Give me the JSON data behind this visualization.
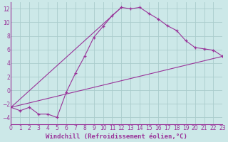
{
  "xlabel": "Windchill (Refroidissement éolien,°C)",
  "background_color": "#cce8e8",
  "line_color": "#993399",
  "grid_color": "#aacccc",
  "xlim": [
    0,
    23
  ],
  "ylim": [
    -5,
    13
  ],
  "xticks": [
    0,
    1,
    2,
    3,
    4,
    5,
    6,
    7,
    8,
    9,
    10,
    11,
    12,
    13,
    14,
    15,
    16,
    17,
    18,
    19,
    20,
    21,
    22,
    23
  ],
  "yticks": [
    -4,
    -2,
    0,
    2,
    4,
    6,
    8,
    10,
    12
  ],
  "curve1_x": [
    0,
    1,
    2,
    3,
    4,
    5,
    6,
    7,
    8,
    9,
    10,
    11,
    12,
    13,
    14,
    15,
    16,
    17,
    18,
    19,
    20,
    21,
    22,
    23
  ],
  "curve1_y": [
    -2.5,
    -3.0,
    -2.5,
    -3.5,
    -3.5,
    -4.0,
    -0.3,
    2.5,
    5.0,
    7.8,
    9.4,
    11.0,
    12.2,
    12.0,
    12.2,
    11.3,
    10.5,
    9.5,
    8.8,
    7.3,
    6.3,
    6.1,
    5.9,
    5.0
  ],
  "line1_x": [
    0,
    12
  ],
  "line1_y": [
    -2.5,
    12.2
  ],
  "line2_x": [
    0,
    23
  ],
  "line2_y": [
    -2.5,
    5.0
  ],
  "tick_fontsize": 5.5,
  "xlabel_fontsize": 6.5
}
